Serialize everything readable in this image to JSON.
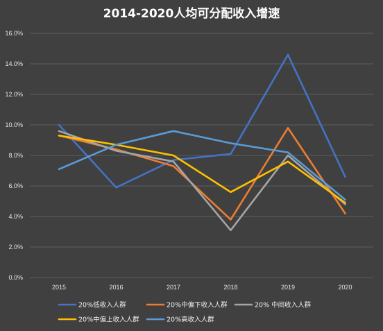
{
  "chart_data": {
    "type": "line",
    "title": "2014-2020人均可分配收入增速",
    "xlabel": "",
    "ylabel": "",
    "categories": [
      "2015",
      "2016",
      "2017",
      "2018",
      "2019",
      "2020"
    ],
    "ylim": [
      0,
      16
    ],
    "yticks": [
      "0.0%",
      "2.0%",
      "4.0%",
      "6.0%",
      "8.0%",
      "10.0%",
      "12.0%",
      "14.0%",
      "16.0%"
    ],
    "grid": true,
    "legend_position": "bottom",
    "series": [
      {
        "name": "20%低收入人群",
        "color": "#4472C4",
        "values": [
          10.0,
          5.9,
          7.7,
          8.1,
          14.6,
          6.6
        ]
      },
      {
        "name": "20%中偏下收入人群",
        "color": "#ED7D31",
        "values": [
          9.3,
          8.4,
          7.3,
          3.8,
          9.8,
          4.2
        ]
      },
      {
        "name": "20% 中间收入人群",
        "color": "#A5A5A5",
        "values": [
          9.6,
          8.3,
          7.6,
          3.1,
          8.0,
          4.8
        ]
      },
      {
        "name": "20%中偏上收入人群",
        "color": "#FFC000",
        "values": [
          9.3,
          8.7,
          8.0,
          5.6,
          7.6,
          4.9
        ]
      },
      {
        "name": "20%高收入人群",
        "color": "#5B9BD5",
        "values": [
          7.1,
          8.7,
          9.6,
          8.8,
          8.2,
          5.1
        ]
      }
    ]
  }
}
